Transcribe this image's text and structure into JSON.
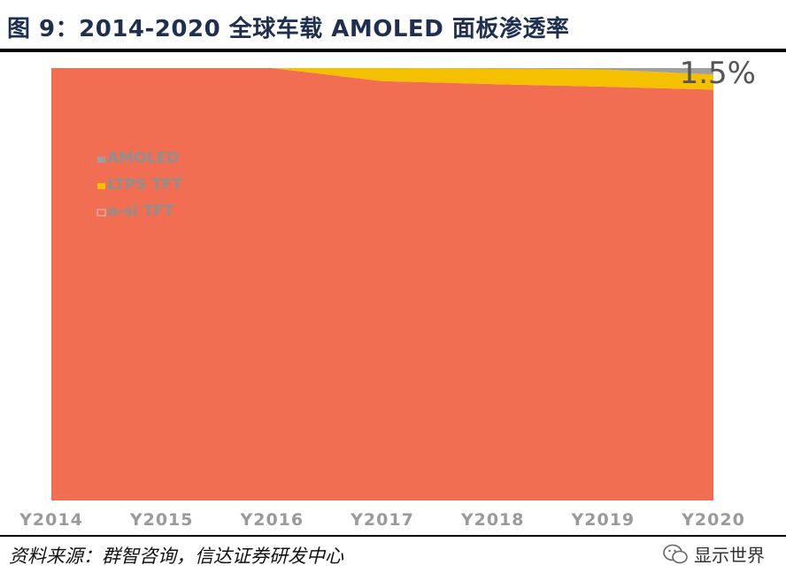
{
  "title": "图 9：2014-2020 全球车载 AMOLED 面板渗透率",
  "source": "资料来源：群智咨询，信达证券研发中心",
  "watermark": "显示世界",
  "colors": {
    "amoled": "#9e9e9e",
    "ltps": "#f5c000",
    "asi": "#f26e52",
    "title": "#1f2f4f"
  },
  "chart_data": {
    "type": "area",
    "stacked": true,
    "normalized": true,
    "categories": [
      "Y2014",
      "Y2015",
      "Y2016",
      "Y2017",
      "Y2018",
      "Y2019",
      "Y2020"
    ],
    "series": [
      {
        "name": "AMOLED",
        "values": [
          0,
          0,
          0,
          0,
          0.1,
          0.3,
          1.5
        ]
      },
      {
        "name": "LTPS TFT",
        "values": [
          0,
          0,
          0,
          3.0,
          3.6,
          4.0,
          3.5
        ]
      },
      {
        "name": "a-si TFT",
        "values": [
          100,
          100,
          100,
          97.0,
          96.3,
          95.7,
          95.0
        ]
      }
    ],
    "ylim": [
      0,
      100
    ],
    "grid": false,
    "legend_position": "top-left",
    "annotations": [
      "1.5%"
    ]
  }
}
